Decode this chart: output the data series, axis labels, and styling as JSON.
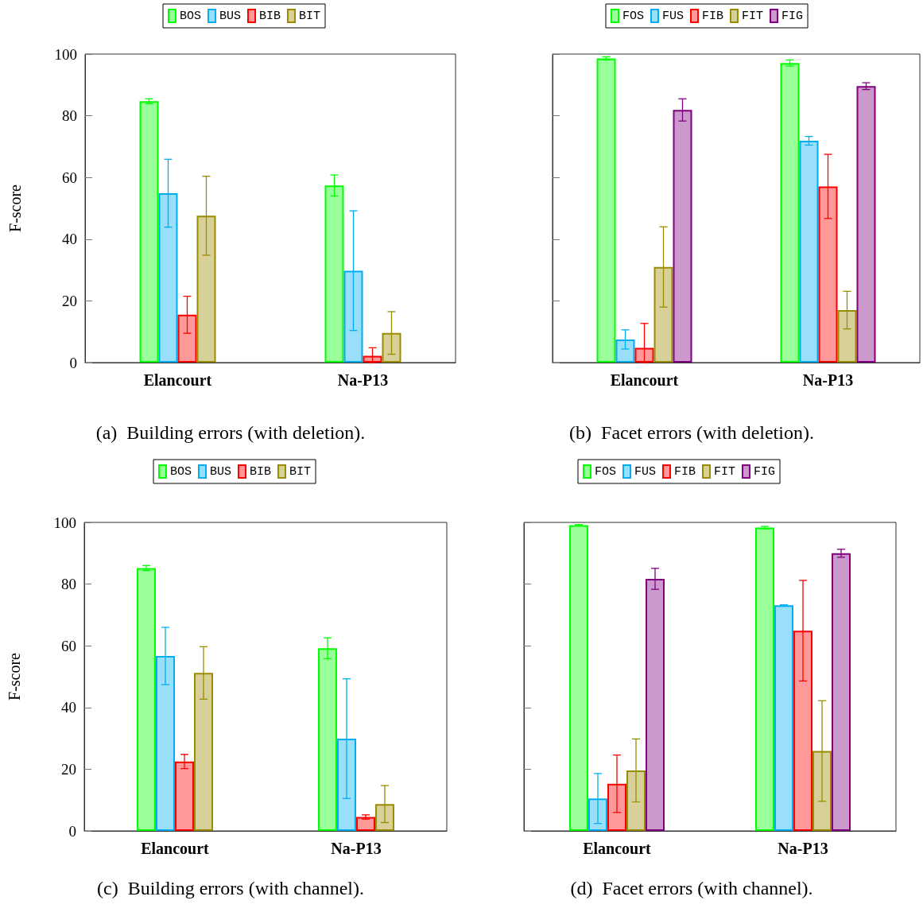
{
  "chart_data": [
    {
      "type": "bar",
      "title": "(a)  Building errors (with deletion).",
      "ylabel": "F-score",
      "categories": [
        "Elancourt",
        "Na-P13"
      ],
      "ylim": [
        0,
        100
      ],
      "yticks": [
        0,
        20,
        40,
        60,
        80,
        100
      ],
      "grid": false,
      "legend": "top",
      "series": [
        {
          "name": "BOS",
          "color": "#00ff00",
          "values": [
            84.7,
            57.4
          ],
          "errors": [
            0.8,
            3.4
          ]
        },
        {
          "name": "BUS",
          "color": "#00aeef",
          "values": [
            54.9,
            29.8
          ],
          "errors": [
            11,
            19.4
          ]
        },
        {
          "name": "BIB",
          "color": "#ff0000",
          "values": [
            15.5,
            2.2
          ],
          "errors": [
            6,
            [
              0,
              4.8
            ]
          ]
        },
        {
          "name": "BIT",
          "color": "#9a8c00",
          "values": [
            47.6,
            9.6
          ],
          "errors": [
            12.8,
            6.9
          ]
        }
      ]
    },
    {
      "type": "bar",
      "title": "(b)  Facet errors (with deletion).",
      "categories": [
        "Elancourt",
        "Na-P13"
      ],
      "ylim": [
        0,
        100
      ],
      "yticks": [
        0,
        20,
        40,
        60,
        80,
        100
      ],
      "grid": false,
      "legend": "top",
      "tick_labels": "x",
      "series": [
        {
          "name": "FOS",
          "color": "#00ff00",
          "values": [
            98.6,
            97.1
          ],
          "errors": [
            0.5,
            1
          ]
        },
        {
          "name": "FUS",
          "color": "#00aeef",
          "values": [
            7.5,
            71.9
          ],
          "errors": [
            3.1,
            1.4
          ]
        },
        {
          "name": "FIB",
          "color": "#ff0000",
          "values": [
            4.8,
            57.1
          ],
          "errors": [
            [
              0,
              12.7
            ],
            10.4
          ]
        },
        {
          "name": "FIT",
          "color": "#9a8c00",
          "values": [
            31,
            17
          ],
          "errors": [
            13,
            6.1
          ]
        },
        {
          "name": "FIG",
          "color": "#800080",
          "values": [
            81.9,
            89.6
          ],
          "errors": [
            3.6,
            1.1
          ]
        }
      ]
    },
    {
      "type": "bar",
      "title": "(c)  Building errors (with channel).",
      "ylabel": "F-score",
      "categories": [
        "Elancourt",
        "Na-P13"
      ],
      "ylim": [
        0,
        100
      ],
      "yticks": [
        0,
        20,
        40,
        60,
        80,
        100
      ],
      "grid": false,
      "legend": "top",
      "series": [
        {
          "name": "BOS",
          "color": "#00ff00",
          "values": [
            85.2,
            59.2
          ],
          "errors": [
            0.8,
            3.4
          ]
        },
        {
          "name": "BUS",
          "color": "#00aeef",
          "values": [
            56.7,
            29.9
          ],
          "errors": [
            9.3,
            19.4
          ]
        },
        {
          "name": "BIB",
          "color": "#ff0000",
          "values": [
            22.5,
            4.5
          ],
          "errors": [
            2.3,
            0.7
          ]
        },
        {
          "name": "BIT",
          "color": "#9a8c00",
          "values": [
            51.2,
            8.7
          ],
          "errors": [
            8.5,
            6
          ]
        }
      ]
    },
    {
      "type": "bar",
      "title": "(d)  Facet errors (with channel).",
      "categories": [
        "Elancourt",
        "Na-P13"
      ],
      "ylim": [
        0,
        100
      ],
      "yticks": [
        0,
        20,
        40,
        60,
        80,
        100
      ],
      "grid": false,
      "legend": "top",
      "tick_labels": "x",
      "series": [
        {
          "name": "FOS",
          "color": "#00ff00",
          "values": [
            99.1,
            98.3
          ],
          "errors": [
            0.2,
            0.4
          ]
        },
        {
          "name": "FUS",
          "color": "#00aeef",
          "values": [
            10.5,
            73.1
          ],
          "errors": [
            8.1,
            0.2
          ]
        },
        {
          "name": "FIB",
          "color": "#ff0000",
          "values": [
            15.3,
            64.9
          ],
          "errors": [
            9.3,
            16.3
          ]
        },
        {
          "name": "FIT",
          "color": "#9a8c00",
          "values": [
            19.6,
            25.9
          ],
          "errors": [
            10.2,
            16.3
          ]
        },
        {
          "name": "FIG",
          "color": "#800080",
          "values": [
            81.7,
            90
          ],
          "errors": [
            3.4,
            1.3
          ]
        }
      ]
    }
  ]
}
